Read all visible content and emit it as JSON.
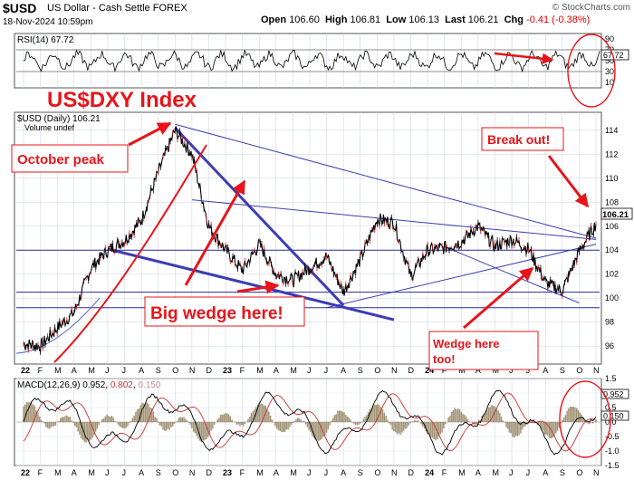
{
  "header": {
    "symbol": "$USD",
    "description": "US Dollar - Cash Settle  FOREX",
    "datetime": "18-Nov-2024 10:59pm",
    "open_label": "Open",
    "open": "106.60",
    "high_label": "High",
    "high": "106.81",
    "low_label": "Low",
    "low": "106.13",
    "last_label": "Last",
    "last": "106.21",
    "chg_label": "Chg",
    "chg": "-0.41 (-0.38%)",
    "brand": "© StockCharts.com"
  },
  "colors": {
    "annot": "#e8141a",
    "wedge": "#3c3cb4",
    "price": "#000000",
    "hline": "#2a2a9a",
    "macd_hist": "#8c7a55"
  },
  "annotations": {
    "title": "US$DXY Index",
    "october_peak": "October peak",
    "big_wedge": "Big wedge here!",
    "break_out": "Break out!",
    "wedge_line1": "Wedge here",
    "wedge_line2": "too!"
  },
  "chart_data": [
    {
      "type": "line",
      "panel": "RSI",
      "label": "RSI(14) 67.72",
      "last_value": "67.72",
      "ylim": [
        0,
        100
      ],
      "y_ticks": [
        "90",
        "70",
        "50",
        "30",
        "10"
      ],
      "reference_levels": [
        70,
        30
      ]
    },
    {
      "type": "line",
      "panel": "price",
      "label": "$USD (Daily) 106.21",
      "volume_label": "Volume undef",
      "last_value": "106.21",
      "ylim": [
        94.5,
        115.5
      ],
      "y_ticks": [
        "114",
        "112",
        "110",
        "108",
        "106",
        "104",
        "102",
        "100",
        "98",
        "96"
      ],
      "x_ticks": [
        "22",
        "F",
        "M",
        "A",
        "M",
        "J",
        "J",
        "A",
        "S",
        "O",
        "N",
        "D",
        "23",
        "F",
        "M",
        "A",
        "M",
        "J",
        "J",
        "A",
        "S",
        "O",
        "N",
        "D",
        "24",
        "F",
        "M",
        "A",
        "M",
        "J",
        "J",
        "A",
        "S",
        "O",
        "N"
      ],
      "x_range": [
        "2022-01",
        "2024-11"
      ],
      "series": [
        {
          "x": [
            0,
            1,
            2,
            3,
            4,
            5,
            6,
            7,
            8,
            9,
            10,
            11,
            12,
            13,
            14,
            15,
            16,
            17,
            18,
            19,
            20,
            21,
            22,
            23,
            24,
            25,
            26,
            27,
            28,
            29,
            30,
            31,
            32,
            33,
            34
          ],
          "values": [
            96.2,
            96.0,
            97.5,
            98.8,
            102.5,
            104.0,
            104.8,
            106.5,
            110.5,
            114.0,
            112.0,
            106.0,
            104.0,
            102.3,
            104.5,
            102.0,
            101.5,
            102.5,
            103.5,
            100.5,
            103.2,
            106.6,
            106.3,
            101.8,
            104.0,
            104.2,
            104.7,
            106.0,
            104.3,
            104.9,
            104.1,
            101.3,
            100.6,
            103.9,
            106.2
          ]
        }
      ],
      "horizontal_levels": [
        104.0,
        100.5,
        99.2
      ],
      "wedge_lines": [
        {
          "from": [
            "2022-10",
            114.5
          ],
          "to": [
            "2024-11",
            105.0
          ]
        },
        {
          "from": [
            "2022-06",
            104.1
          ],
          "to": [
            "2023-11",
            98.2
          ]
        },
        {
          "from": [
            "2022-10",
            114.2
          ],
          "to": [
            "2023-08",
            99.4
          ]
        },
        {
          "from": [
            "2022-11",
            108.2
          ],
          "to": [
            "2024-11",
            104.9
          ]
        },
        {
          "from": [
            "2023-07",
            99.2
          ],
          "to": [
            "2024-11",
            104.5
          ]
        },
        {
          "from": [
            "2024-02",
            104.3
          ],
          "to": [
            "2024-10",
            99.6
          ]
        }
      ]
    },
    {
      "type": "line",
      "panel": "MACD",
      "label_prefix": "MACD(12,26,9)",
      "macd": "0.952",
      "signal": "0.802",
      "histogram": "0.150",
      "ylim": [
        -1.5,
        1.5
      ],
      "y_ticks": [
        "1.5",
        "1.0",
        "0.5",
        "0.0",
        "-0.5",
        "-1.0",
        "-1.5"
      ],
      "x_ticks": [
        "22",
        "F",
        "M",
        "A",
        "M",
        "J",
        "J",
        "A",
        "S",
        "O",
        "N",
        "D",
        "23",
        "F",
        "M",
        "A",
        "M",
        "J",
        "J",
        "A",
        "S",
        "O",
        "N",
        "D",
        "24",
        "F",
        "M",
        "A",
        "M",
        "J",
        "J",
        "A",
        "S",
        "O",
        "N"
      ]
    }
  ]
}
